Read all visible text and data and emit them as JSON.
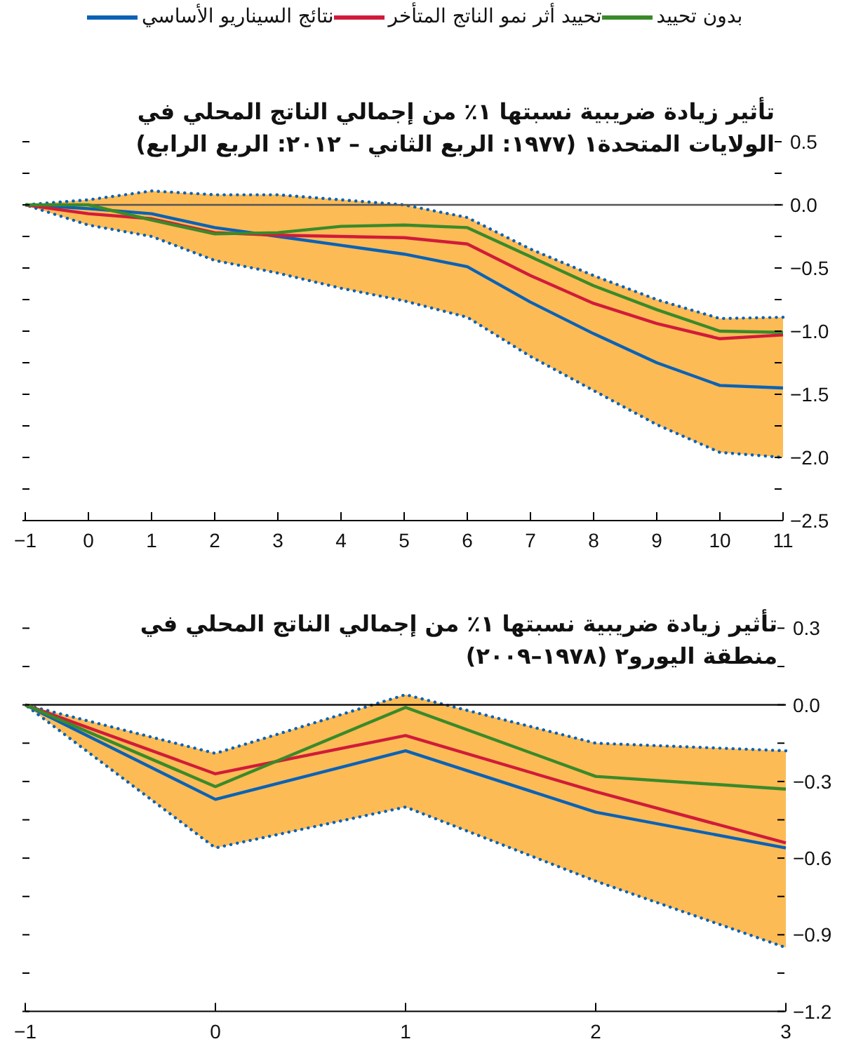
{
  "chart_data": [
    {
      "type": "line",
      "title": "تأثير زيادة ضريبية نسبتها ١٪ من إجمالي الناتج المحلي في الولايات المتحدة١ (١٩٧٧: الربع الثاني – ٢٠١٢: الربع الرابع)",
      "legend": "top",
      "line_style": "solid",
      "marker": "none",
      "grid": false,
      "x": [
        -1,
        0,
        1,
        2,
        3,
        4,
        5,
        6,
        7,
        8,
        9,
        10,
        11
      ],
      "series": [
        {
          "name": "نتائج السيناريو الأساسي",
          "color": "#0b62b5",
          "values": [
            0,
            -0.03,
            -0.07,
            -0.18,
            -0.25,
            -0.32,
            -0.39,
            -0.49,
            -0.77,
            -1.02,
            -1.25,
            -1.43,
            -1.45
          ],
          "lower": [
            0,
            -0.16,
            -0.25,
            -0.44,
            -0.54,
            -0.66,
            -0.76,
            -0.89,
            -1.2,
            -1.47,
            -1.74,
            -1.96,
            -2.0
          ],
          "upper": [
            0,
            0.04,
            0.11,
            0.08,
            0.08,
            0.04,
            0,
            -0.1,
            -0.35,
            -0.56,
            -0.75,
            -0.9,
            -0.89
          ]
        },
        {
          "name": "تحييد أثر نمو الناتج المتأخر",
          "color": "#d01c3a",
          "values": [
            0,
            -0.07,
            -0.11,
            -0.22,
            -0.24,
            -0.25,
            -0.26,
            -0.31,
            -0.56,
            -0.78,
            -0.94,
            -1.06,
            -1.03
          ]
        },
        {
          "name": "بدون تحييد",
          "color": "#3a8a2a",
          "values": [
            0,
            0,
            -0.12,
            -0.23,
            -0.22,
            -0.17,
            -0.16,
            -0.18,
            -0.41,
            -0.64,
            -0.83,
            -1.0,
            -1.01
          ]
        }
      ],
      "xlim": [
        -1,
        11
      ],
      "xticks": [
        -1,
        0,
        1,
        2,
        3,
        4,
        5,
        6,
        7,
        8,
        9,
        10,
        11
      ],
      "ylim": [
        -2.5,
        0.5
      ],
      "yticks": [
        {
          "value": 0.5,
          "label": "0.5"
        },
        {
          "value": 0.25,
          "label": null
        },
        {
          "value": 0,
          "label": "0.0"
        },
        {
          "value": -0.25,
          "label": null
        },
        {
          "value": -0.5,
          "label": "−0.5"
        },
        {
          "value": -0.75,
          "label": null
        },
        {
          "value": -1,
          "label": "−1.0"
        },
        {
          "value": -1.25,
          "label": null
        },
        {
          "value": -1.5,
          "label": "−1.5"
        },
        {
          "value": -1.75,
          "label": null
        },
        {
          "value": -2,
          "label": "−2.0"
        },
        {
          "value": -2.25,
          "label": null
        },
        {
          "value": -2.5,
          "label": "−2.5"
        }
      ],
      "ref_lines": [
        {
          "axis": "y",
          "value": 0,
          "color": "#555555"
        }
      ]
    },
    {
      "type": "line",
      "title": "تأثير زيادة ضريبية نسبتها ١٪ من إجمالي الناتج المحلي في منطقة اليورو٢ (١٩٧٨–٢٠٠٩)",
      "legend": false,
      "line_style": "solid",
      "marker": "none",
      "grid": false,
      "x": [
        -1,
        0,
        1,
        2,
        3
      ],
      "series": [
        {
          "color": "#0b62b5",
          "values": [
            0,
            -0.37,
            -0.18,
            -0.42,
            -0.56
          ],
          "lower": [
            0,
            -0.56,
            -0.4,
            -0.69,
            -0.95
          ],
          "upper": [
            0,
            -0.19,
            0.04,
            -0.15,
            -0.18
          ]
        },
        {
          "color": "#d01c3a",
          "values": [
            0,
            -0.27,
            -0.12,
            -0.34,
            -0.54
          ]
        },
        {
          "color": "#3a8a2a",
          "values": [
            0,
            -0.32,
            -0.01,
            -0.28,
            -0.33
          ]
        }
      ],
      "xlim": [
        -1,
        3
      ],
      "xticks": [
        -1,
        0,
        1,
        2,
        3
      ],
      "ylim": [
        -1.2,
        0.3
      ],
      "yticks": [
        {
          "value": 0.3,
          "label": "0.3"
        },
        {
          "value": 0.15,
          "label": null
        },
        {
          "value": 0,
          "label": "0.0"
        },
        {
          "value": -0.15,
          "label": null
        },
        {
          "value": -0.3,
          "label": "−0.3"
        },
        {
          "value": -0.45,
          "label": null
        },
        {
          "value": -0.6,
          "label": "−0.6"
        },
        {
          "value": -0.75,
          "label": null
        },
        {
          "value": -0.9,
          "label": "−0.9"
        },
        {
          "value": -1.05,
          "label": null
        },
        {
          "value": -1.2,
          "label": "−1.2"
        }
      ],
      "ref_lines": [
        {
          "axis": "y",
          "value": 0,
          "color": "#000000"
        }
      ]
    }
  ]
}
